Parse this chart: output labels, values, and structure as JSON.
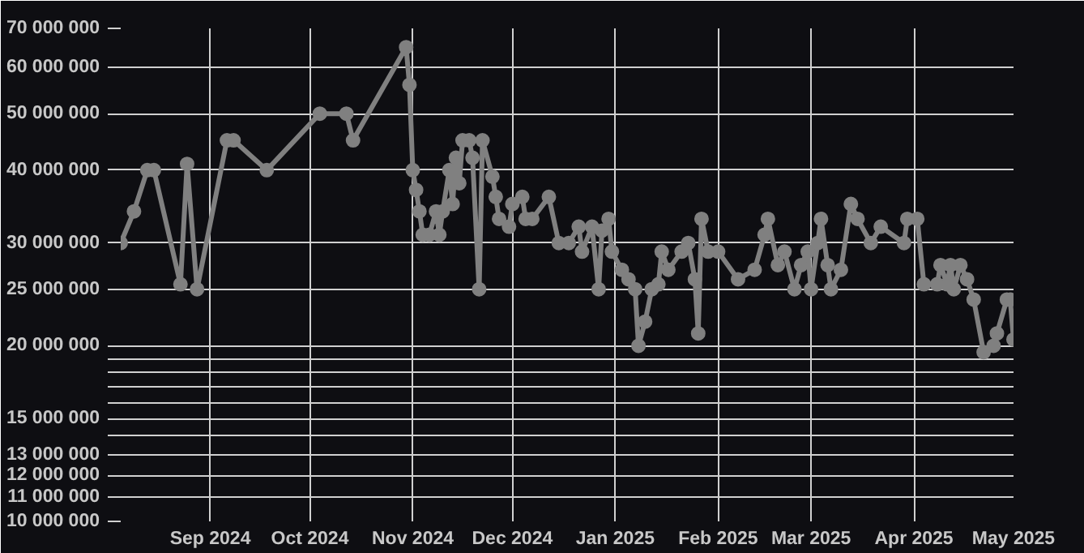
{
  "chart_data": {
    "type": "line",
    "x": [
      "2024-08-05",
      "2024-08-09",
      "2024-08-13",
      "2024-08-15",
      "2024-08-23",
      "2024-08-25",
      "2024-08-28",
      "2024-09-06",
      "2024-09-08",
      "2024-09-18",
      "2024-10-04",
      "2024-10-12",
      "2024-10-14",
      "2024-10-30",
      "2024-10-31",
      "2024-11-01",
      "2024-11-02",
      "2024-11-03",
      "2024-11-04",
      "2024-11-06",
      "2024-11-08",
      "2024-11-09",
      "2024-11-10",
      "2024-11-12",
      "2024-11-13",
      "2024-11-14",
      "2024-11-15",
      "2024-11-16",
      "2024-11-18",
      "2024-11-19",
      "2024-11-21",
      "2024-11-22",
      "2024-11-25",
      "2024-11-26",
      "2024-11-27",
      "2024-11-30",
      "2024-12-01",
      "2024-12-04",
      "2024-12-05",
      "2024-12-07",
      "2024-12-12",
      "2024-12-15",
      "2024-12-18",
      "2024-12-21",
      "2024-12-22",
      "2024-12-25",
      "2024-12-27",
      "2024-12-28",
      "2024-12-30",
      "2024-12-31",
      "2025-01-03",
      "2025-01-05",
      "2025-01-07",
      "2025-01-08",
      "2025-01-10",
      "2025-01-12",
      "2025-01-14",
      "2025-01-15",
      "2025-01-17",
      "2025-01-21",
      "2025-01-23",
      "2025-01-25",
      "2025-01-26",
      "2025-01-27",
      "2025-01-29",
      "2025-02-01",
      "2025-02-07",
      "2025-02-12",
      "2025-02-15",
      "2025-02-16",
      "2025-02-19",
      "2025-02-21",
      "2025-02-24",
      "2025-02-26",
      "2025-02-28",
      "2025-03-01",
      "2025-03-03",
      "2025-03-04",
      "2025-03-06",
      "2025-03-07",
      "2025-03-10",
      "2025-03-13",
      "2025-03-15",
      "2025-03-19",
      "2025-03-22",
      "2025-03-29",
      "2025-03-30",
      "2025-04-02",
      "2025-04-04",
      "2025-04-08",
      "2025-04-09",
      "2025-04-11",
      "2025-04-12",
      "2025-04-13",
      "2025-04-15",
      "2025-04-17",
      "2025-04-19",
      "2025-04-22",
      "2025-04-25",
      "2025-04-26",
      "2025-04-29",
      "2025-04-30",
      "2025-05-01"
    ],
    "series": [
      {
        "color": "#808080",
        "values": [
          30000000,
          34000000,
          40000000,
          40000000,
          25500000,
          41000000,
          25000000,
          45000000,
          45000000,
          40000000,
          50000000,
          50000000,
          45000000,
          65000000,
          56000000,
          40000000,
          37000000,
          34000000,
          31000000,
          31000000,
          34000000,
          31000000,
          34000000,
          40000000,
          35000000,
          42000000,
          38000000,
          45000000,
          45000000,
          42000000,
          25000000,
          45000000,
          39000000,
          36000000,
          33000000,
          32000000,
          35000000,
          36000000,
          33000000,
          33000000,
          36000000,
          30000000,
          30000000,
          32000000,
          29000000,
          32000000,
          25000000,
          31500000,
          33000000,
          29000000,
          27000000,
          26000000,
          25000000,
          20000000,
          22000000,
          25000000,
          25500000,
          29000000,
          27000000,
          29000000,
          30000000,
          26000000,
          21000000,
          33000000,
          29000000,
          29000000,
          26000000,
          27000000,
          31000000,
          33000000,
          27500000,
          29000000,
          25000000,
          27500000,
          29000000,
          25000000,
          30000000,
          33000000,
          27500000,
          25000000,
          27000000,
          35000000,
          33000000,
          30000000,
          32000000,
          30000000,
          33000000,
          33000000,
          25500000,
          25500000,
          27500000,
          25500000,
          27500000,
          25000000,
          27500000,
          26000000,
          24000000,
          19500000,
          20000000,
          21000000,
          24000000,
          24000000,
          20500000
        ]
      }
    ],
    "marker": "circle",
    "line_style": "solid",
    "log": "y",
    "grid": true,
    "xlim": [
      "2024-08-05",
      "2025-05-01"
    ],
    "xticks": [
      {
        "value": "2024-09-01",
        "label": "Sep 2024"
      },
      {
        "value": "2024-10-01",
        "label": "Oct 2024"
      },
      {
        "value": "2024-11-01",
        "label": "Nov 2024"
      },
      {
        "value": "2024-12-01",
        "label": "Dec 2024"
      },
      {
        "value": "2025-01-01",
        "label": "Jan 2025"
      },
      {
        "value": "2025-02-01",
        "label": "Feb 2025"
      },
      {
        "value": "2025-03-01",
        "label": "Mar 2025"
      },
      {
        "value": "2025-04-01",
        "label": "Apr 2025"
      },
      {
        "value": "2025-05-01",
        "label": "May 2025"
      }
    ],
    "ylim": [
      10000000,
      70000000
    ],
    "yticks": [
      {
        "value": 10000000,
        "label": "10 000 000"
      },
      {
        "value": 11000000,
        "label": "11 000 000"
      },
      {
        "value": 12000000,
        "label": "12 000 000"
      },
      {
        "value": 13000000,
        "label": "13 000 000"
      },
      {
        "value": 14000000,
        "label": null
      },
      {
        "value": 15000000,
        "label": "15 000 000"
      },
      {
        "value": 16000000,
        "label": null
      },
      {
        "value": 17000000,
        "label": null
      },
      {
        "value": 18000000,
        "label": null
      },
      {
        "value": 19000000,
        "label": null
      },
      {
        "value": 20000000,
        "label": "20 000 000"
      },
      {
        "value": 25000000,
        "label": "25 000 000"
      },
      {
        "value": 30000000,
        "label": "30 000 000"
      },
      {
        "value": 40000000,
        "label": "40 000 000"
      },
      {
        "value": 50000000,
        "label": "50 000 000"
      },
      {
        "value": 60000000,
        "label": "60 000 000"
      },
      {
        "value": 70000000,
        "label": "70 000 000"
      }
    ]
  }
}
